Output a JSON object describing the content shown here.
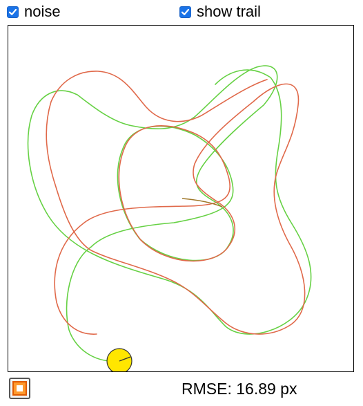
{
  "controls": {
    "noise": {
      "label": "noise",
      "checked": true
    },
    "show_trail": {
      "label": "show trail",
      "checked": true
    }
  },
  "status": {
    "rmse_text": "RMSE: 16.89 px"
  },
  "colors": {
    "true_trail": "#66d144",
    "estimated_trail": "#e0694a",
    "robot_fill": "#ffe600",
    "stop_button": "#ff9a2e",
    "checkbox": "#1a73e8"
  },
  "icons": {
    "stop_button": "stop-icon",
    "checkbox": "checkmark-icon"
  }
}
